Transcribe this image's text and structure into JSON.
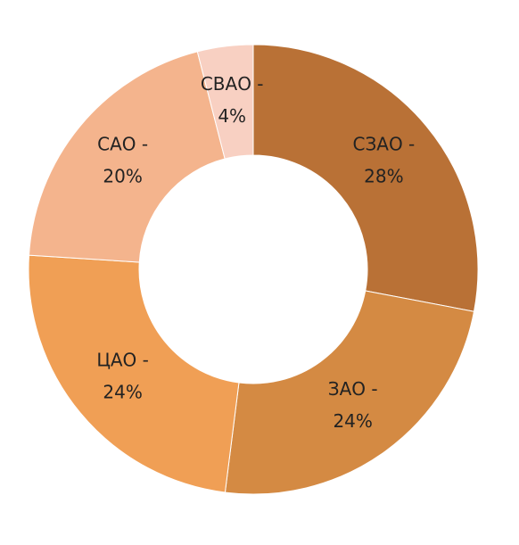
{
  "chart_data": {
    "type": "donut",
    "categories": [
      "СЗАО -",
      "ЗАО -",
      "ЦАО -",
      "САО -",
      "СВАО -"
    ],
    "values": [
      28,
      24,
      24,
      20,
      4
    ],
    "value_labels": [
      "28%",
      "24%",
      "24%",
      "20%",
      "4%"
    ],
    "colors": [
      "#b97136",
      "#d48a43",
      "#f09f55",
      "#f4b48d",
      "#f8d0c2"
    ]
  }
}
